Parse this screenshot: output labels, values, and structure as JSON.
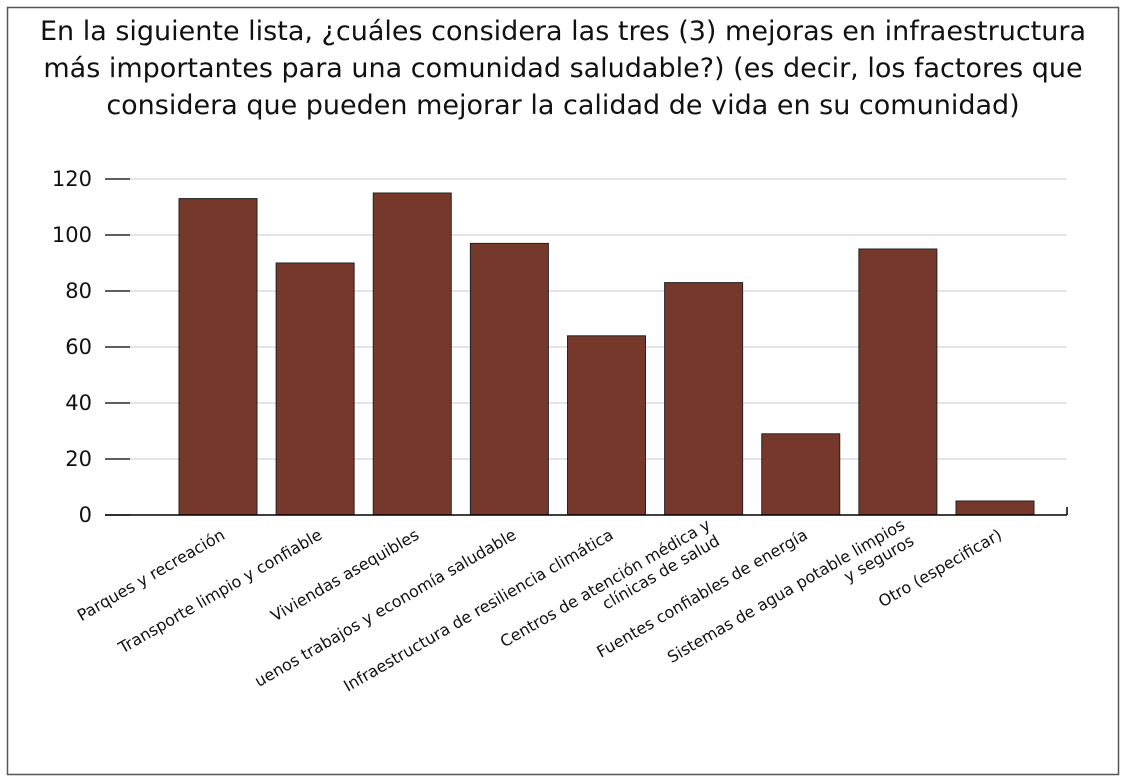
{
  "chart_data": {
    "type": "bar",
    "title": [
      "En la siguiente lista, ¿cuáles considera las tres (3) mejoras en infraestructura",
      "más importantes para una comunidad saludable?) (es decir, los factores que",
      "considera que pueden mejorar la calidad de vida en su comunidad)"
    ],
    "categories": [
      "Parques y recreación",
      "Transporte limpio y confiable",
      "Viviendas asequibles",
      "uenos trabajos y economía saludable",
      "Infraestructura de resiliencia climática",
      "Centros de atención médica y\nclínicas de salud",
      "Fuentes confiables de energía",
      "Sistemas de agua potable limpios\ny seguros",
      "Otro (especificar)"
    ],
    "values": [
      113,
      90,
      115,
      97,
      64,
      83,
      29,
      95,
      5
    ],
    "color": "#76382a",
    "ylim": [
      0,
      120
    ],
    "yticks": [
      0,
      20,
      40,
      60,
      80,
      100,
      120
    ],
    "grid": true
  }
}
